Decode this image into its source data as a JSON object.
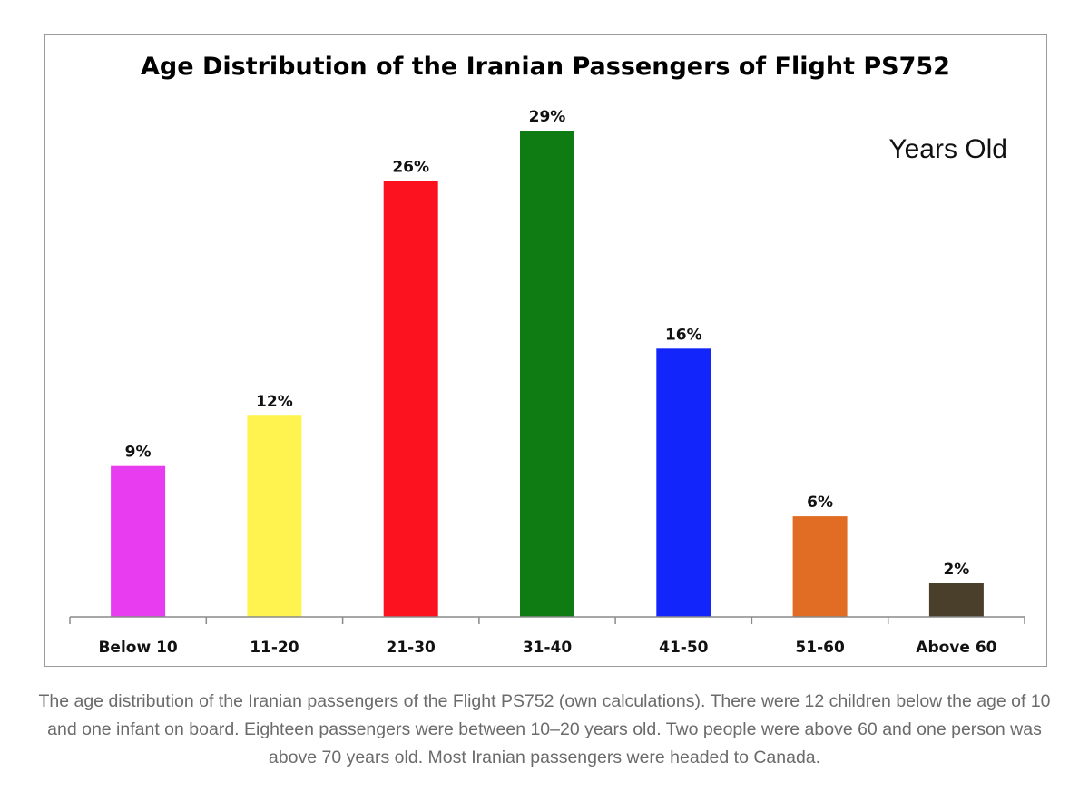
{
  "chart_data": {
    "type": "bar",
    "title": "Age Distribution of the Iranian Passengers of Flight PS752",
    "unit_note": "Years Old",
    "categories": [
      "Below 10",
      "11-20",
      "21-30",
      "31-40",
      "41-50",
      "51-60",
      "Above 60"
    ],
    "values": [
      9,
      12,
      26,
      29,
      16,
      6,
      2
    ],
    "value_labels": [
      "9%",
      "12%",
      "26%",
      "29%",
      "16%",
      "6%",
      "2%"
    ],
    "bar_colors": [
      "#e83cf0",
      "#fff44f",
      "#fc121e",
      "#0f7b13",
      "#1226fc",
      "#e16d24",
      "#4a3f2a"
    ],
    "ylim": [
      0,
      29
    ],
    "grid": false,
    "legend": "none",
    "xlabel": "",
    "ylabel": ""
  },
  "caption": "The age distribution of the Iranian passengers of the Flight PS752 (own calculations). There were 12 children below the age of 10 and one infant on board. Eighteen passengers were between 10–20 years old. Two people were above 60 and one person was above 70 years old. Most Iranian passengers were headed to Canada."
}
